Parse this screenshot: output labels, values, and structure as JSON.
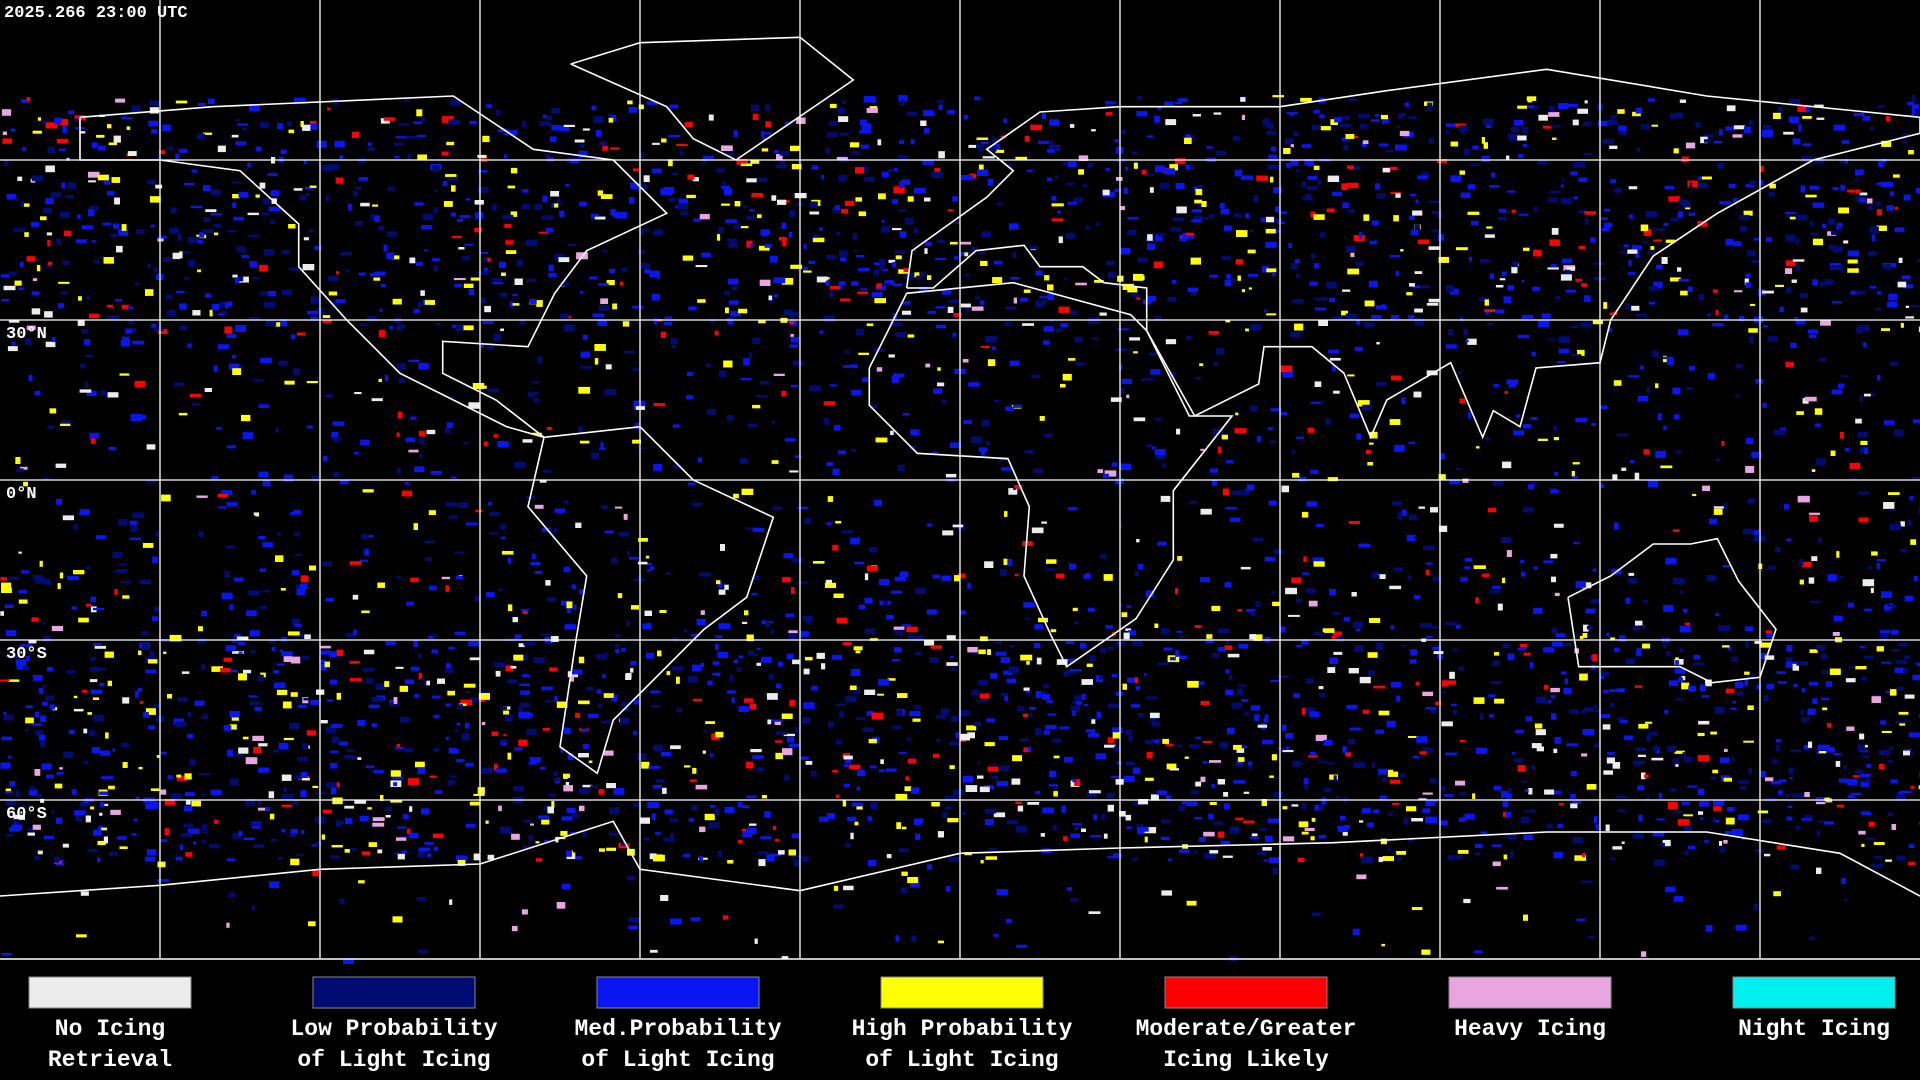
{
  "header": {
    "timestamp": "2025.266 23:00 UTC"
  },
  "map": {
    "latitude_labels": [
      "30°N",
      "0°N",
      "30°S",
      "60°S"
    ]
  },
  "legend": {
    "items": [
      {
        "lines": [
          "No Icing",
          "Retrieval"
        ],
        "color": "#ececec"
      },
      {
        "lines": [
          "Low Probability",
          "of Light Icing"
        ],
        "color": "#000c72"
      },
      {
        "lines": [
          "Med.Probability",
          "of Light Icing"
        ],
        "color": "#0a16f2"
      },
      {
        "lines": [
          "High Probability",
          "of Light Icing"
        ],
        "color": "#ffff00"
      },
      {
        "lines": [
          "Moderate/Greater",
          "Icing Likely"
        ],
        "color": "#ff0000"
      },
      {
        "lines": [
          "Heavy Icing"
        ],
        "color": "#e8a6e0"
      },
      {
        "lines": [
          "Night Icing"
        ],
        "color": "#00f0f0"
      }
    ]
  }
}
